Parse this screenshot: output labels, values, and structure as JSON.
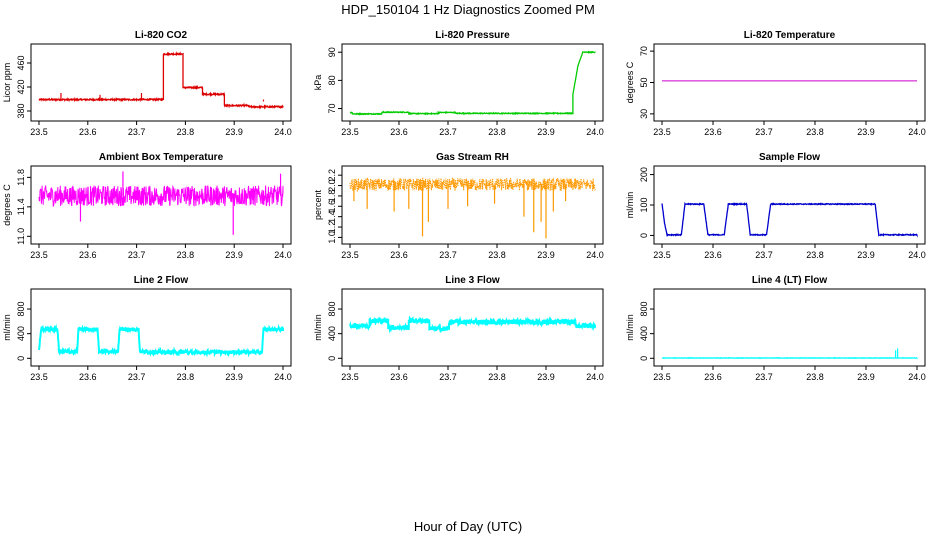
{
  "title": "HDP_150104  1 Hz Diagnostics Zoomed PM",
  "xlabel": "Hour of Day (UTC)",
  "chart_data": [
    {
      "type": "line",
      "title": "Li-820 CO2",
      "ylabel": "Licor ppm",
      "color": "#dd0000",
      "xlim": [
        23.5,
        24.0
      ],
      "xticks": [
        23.5,
        23.6,
        23.7,
        23.8,
        23.9,
        24.0
      ],
      "ylim": [
        370,
        485
      ],
      "yticks": [
        380,
        420,
        460
      ],
      "series": [
        {
          "style": "noisy-steps",
          "noise": 1.2,
          "x": [
            23.5,
            23.755,
            23.755,
            23.795,
            23.795,
            23.835,
            23.835,
            23.88,
            23.88,
            23.93,
            23.93,
            24.0
          ],
          "y": [
            399,
            399,
            475,
            475,
            419,
            419,
            408,
            408,
            389,
            389,
            387,
            387
          ],
          "spikes": [
            [
              23.545,
              410
            ],
            [
              23.625,
              407
            ],
            [
              23.71,
              410
            ],
            [
              23.96,
              396
            ]
          ]
        }
      ]
    },
    {
      "type": "line",
      "title": "Li-820 Pressure",
      "ylabel": "kPa",
      "color": "#00cc00",
      "xlim": [
        23.5,
        24.0
      ],
      "xticks": [
        23.5,
        23.6,
        23.7,
        23.8,
        23.9,
        24.0
      ],
      "ylim": [
        67,
        91.5
      ],
      "yticks": [
        70,
        80,
        90
      ],
      "series": [
        {
          "style": "noisy-steps",
          "noise": 0.15,
          "x": [
            23.5,
            23.505,
            23.505,
            23.565,
            23.565,
            23.62,
            23.62,
            23.68,
            23.68,
            23.715,
            23.715,
            23.955,
            23.955,
            23.965,
            23.975,
            23.975,
            24.0
          ],
          "y": [
            68.6,
            68.6,
            68.1,
            68.1,
            68.7,
            68.7,
            68.2,
            68.2,
            68.6,
            68.6,
            68.3,
            68.3,
            75,
            85,
            90,
            90,
            90
          ]
        }
      ]
    },
    {
      "type": "line",
      "title": "Li-820 Temperature",
      "ylabel": "degrees C",
      "color": "#cc00cc",
      "xlim": [
        23.5,
        24.0
      ],
      "xticks": [
        23.5,
        23.6,
        23.7,
        23.8,
        23.9,
        24.0
      ],
      "ylim": [
        28,
        72
      ],
      "yticks": [
        30,
        50,
        70
      ],
      "series": [
        {
          "style": "flat",
          "x": [
            23.5,
            24.0
          ],
          "y": [
            51,
            51
          ]
        }
      ]
    },
    {
      "type": "line",
      "title": "Ambient Box Temperature",
      "ylabel": "degrees C",
      "color": "#ff00ff",
      "xlim": [
        23.5,
        24.0
      ],
      "xticks": [
        23.5,
        23.6,
        23.7,
        23.8,
        23.9,
        24.0
      ],
      "ylim": [
        10.95,
        11.9
      ],
      "yticks": [
        11.0,
        11.4,
        11.8
      ],
      "series": [
        {
          "style": "noise-band",
          "x": [
            23.5,
            24.0
          ],
          "y": [
            11.55,
            11.55
          ],
          "noise": 0.14,
          "spikes": [
            [
              23.585,
              11.2
            ],
            [
              23.672,
              11.88
            ],
            [
              23.898,
              11.02
            ],
            [
              23.995,
              11.85
            ]
          ]
        }
      ]
    },
    {
      "type": "line",
      "title": "Gas Stream RH",
      "ylabel": "percent",
      "color": "#ff9900",
      "xlim": [
        23.5,
        24.0
      ],
      "xticks": [
        23.5,
        23.6,
        23.7,
        23.8,
        23.9,
        24.0
      ],
      "ylim": [
        0.95,
        2.3
      ],
      "yticks": [
        1.0,
        1.2,
        1.4,
        1.6,
        1.8,
        2.0,
        2.2
      ],
      "series": [
        {
          "style": "noise-band",
          "x": [
            23.5,
            24.0
          ],
          "y": [
            2.02,
            2.02
          ],
          "noise": 0.12,
          "spikes": [
            [
              23.508,
              1.7
            ],
            [
              23.535,
              1.55
            ],
            [
              23.59,
              1.5
            ],
            [
              23.62,
              1.55
            ],
            [
              23.648,
              1.02
            ],
            [
              23.66,
              1.3
            ],
            [
              23.7,
              1.55
            ],
            [
              23.74,
              1.6
            ],
            [
              23.795,
              1.65
            ],
            [
              23.855,
              1.4
            ],
            [
              23.875,
              1.1
            ],
            [
              23.89,
              1.3
            ],
            [
              23.9,
              0.98
            ],
            [
              23.915,
              1.5
            ],
            [
              23.94,
              1.7
            ]
          ]
        }
      ]
    },
    {
      "type": "line",
      "title": "Sample Flow",
      "ylabel": "ml/min",
      "color": "#0000cc",
      "xlim": [
        23.5,
        24.0
      ],
      "xticks": [
        23.5,
        23.6,
        23.7,
        23.8,
        23.9,
        24.0
      ],
      "ylim": [
        -15,
        215
      ],
      "yticks": [
        0,
        100,
        200
      ],
      "series": [
        {
          "style": "noisy-steps",
          "noise": 1.5,
          "x": [
            23.5,
            23.505,
            23.51,
            23.538,
            23.545,
            23.582,
            23.59,
            23.622,
            23.63,
            23.666,
            23.673,
            23.705,
            23.713,
            23.918,
            23.925,
            24.0
          ],
          "y": [
            105,
            40,
            2,
            2,
            103,
            103,
            2,
            2,
            103,
            103,
            2,
            2,
            103,
            103,
            2,
            2
          ]
        }
      ]
    },
    {
      "type": "line",
      "title": "Line 2 Flow",
      "ylabel": "ml/min",
      "color": "#00ffff",
      "xlim": [
        23.5,
        24.0
      ],
      "xticks": [
        23.5,
        23.6,
        23.7,
        23.8,
        23.9,
        24.0
      ],
      "ylim": [
        -60,
        1060
      ],
      "yticks": [
        0,
        400,
        800
      ],
      "series": [
        {
          "style": "noisy-steps",
          "noise": 30,
          "x": [
            23.5,
            23.504,
            23.538,
            23.541,
            23.578,
            23.581,
            23.62,
            23.623,
            23.662,
            23.665,
            23.704,
            23.707,
            23.745,
            23.957,
            23.96,
            24.0
          ],
          "y": [
            120,
            470,
            470,
            110,
            110,
            470,
            470,
            110,
            110,
            470,
            470,
            110,
            100,
            100,
            470,
            470
          ]
        }
      ]
    },
    {
      "type": "line",
      "title": "Line 3 Flow",
      "ylabel": "ml/min",
      "color": "#00ffff",
      "xlim": [
        23.5,
        24.0
      ],
      "xticks": [
        23.5,
        23.6,
        23.7,
        23.8,
        23.9,
        24.0
      ],
      "ylim": [
        -60,
        1060
      ],
      "yticks": [
        0,
        400,
        800
      ],
      "series": [
        {
          "style": "noisy-steps",
          "noise": 40,
          "x": [
            23.5,
            23.54,
            23.54,
            23.578,
            23.578,
            23.62,
            23.62,
            23.662,
            23.662,
            23.702,
            23.702,
            23.96,
            23.96,
            24.0
          ],
          "y": [
            530,
            530,
            610,
            610,
            500,
            500,
            610,
            610,
            480,
            480,
            590,
            590,
            530,
            530
          ]
        }
      ]
    },
    {
      "type": "line",
      "title": "Line 4 (LT) Flow",
      "ylabel": "ml/min",
      "color": "#00ffff",
      "xlim": [
        23.5,
        24.0
      ],
      "xticks": [
        23.5,
        23.6,
        23.7,
        23.8,
        23.9,
        24.0
      ],
      "ylim": [
        -60,
        1060
      ],
      "yticks": [
        0,
        400,
        800
      ],
      "series": [
        {
          "style": "noisy-steps",
          "noise": 3,
          "x": [
            23.5,
            24.0
          ],
          "y": [
            5,
            5
          ],
          "spikes": [
            [
              23.958,
              130
            ],
            [
              23.962,
              160
            ]
          ]
        }
      ]
    }
  ]
}
